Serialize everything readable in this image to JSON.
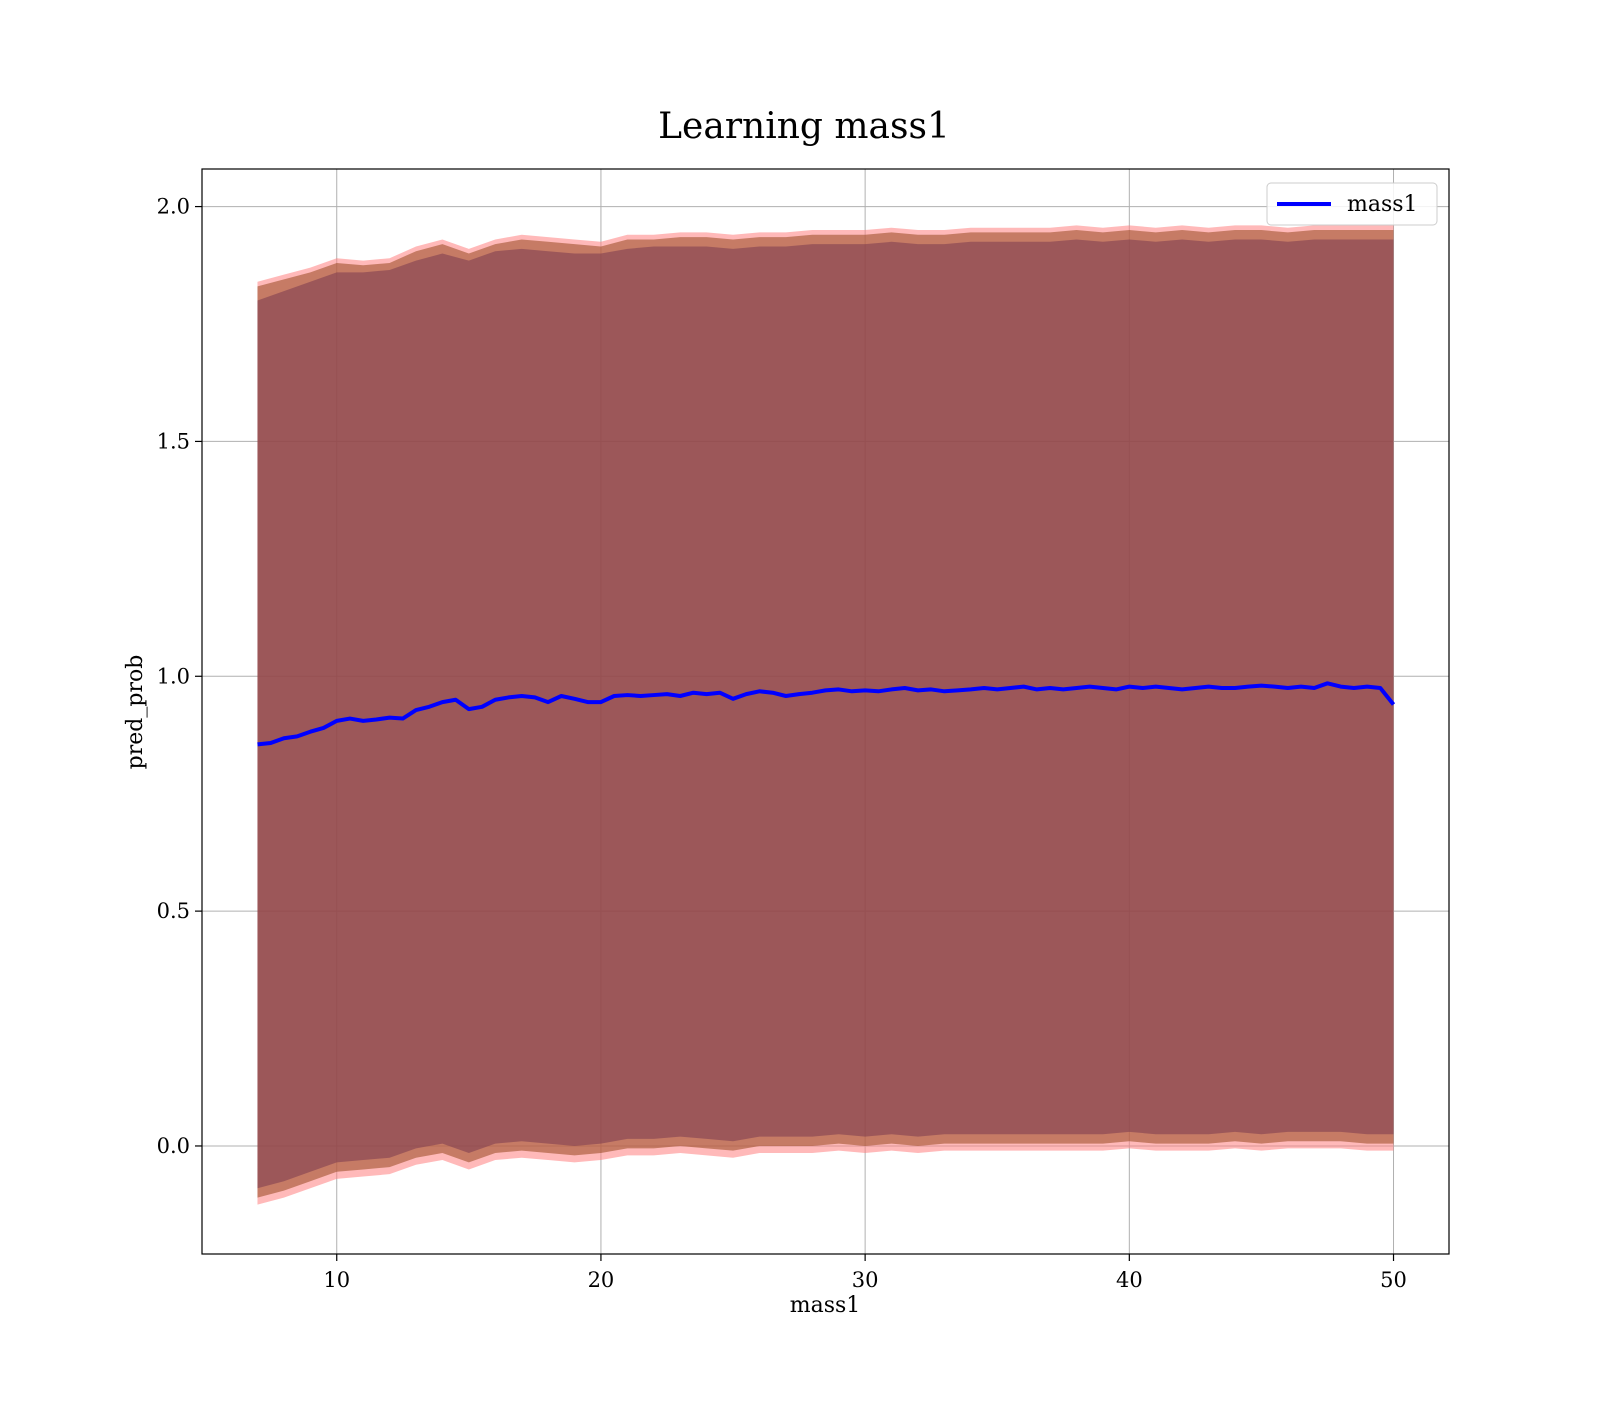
{
  "chart_data": {
    "type": "line",
    "title": "Learning mass1",
    "xlabel": "mass1",
    "ylabel": "pred_prob",
    "xlim": [
      4.9,
      52.1
    ],
    "ylim": [
      -0.23,
      2.08
    ],
    "xticks": [
      10,
      20,
      30,
      40,
      50
    ],
    "yticks": [
      0.0,
      0.5,
      1.0,
      1.5,
      2.0
    ],
    "xtick_labels": [
      "10",
      "20",
      "30",
      "40",
      "50"
    ],
    "ytick_labels": [
      "0.0",
      "0.5",
      "1.0",
      "1.5",
      "2.0"
    ],
    "grid": true,
    "legend_position": "top-right",
    "series": [
      {
        "name": "mass1",
        "color": "#0000ff",
        "x": [
          7,
          7.5,
          8,
          8.5,
          9,
          9.5,
          10,
          10.5,
          11,
          11.5,
          12,
          12.5,
          13,
          13.5,
          14,
          14.5,
          15,
          15.5,
          16,
          16.5,
          17,
          17.5,
          18,
          18.5,
          19,
          19.5,
          20,
          20.5,
          21,
          21.5,
          22,
          22.5,
          23,
          23.5,
          24,
          24.5,
          25,
          25.5,
          26,
          26.5,
          27,
          27.5,
          28,
          28.5,
          29,
          29.5,
          30,
          30.5,
          31,
          31.5,
          32,
          32.5,
          33,
          33.5,
          34,
          34.5,
          35,
          35.5,
          36,
          36.5,
          37,
          37.5,
          38,
          38.5,
          39,
          39.5,
          40,
          40.5,
          41,
          41.5,
          42,
          42.5,
          43,
          43.5,
          44,
          44.5,
          45,
          45.5,
          46,
          46.5,
          47,
          47.5,
          48,
          48.5,
          49,
          49.5,
          50
        ],
        "values": [
          0.855,
          0.858,
          0.868,
          0.872,
          0.882,
          0.89,
          0.905,
          0.91,
          0.905,
          0.908,
          0.912,
          0.91,
          0.928,
          0.935,
          0.945,
          0.95,
          0.93,
          0.935,
          0.95,
          0.955,
          0.958,
          0.955,
          0.945,
          0.958,
          0.952,
          0.945,
          0.945,
          0.958,
          0.96,
          0.958,
          0.96,
          0.962,
          0.958,
          0.965,
          0.962,
          0.965,
          0.952,
          0.962,
          0.968,
          0.965,
          0.958,
          0.962,
          0.965,
          0.97,
          0.972,
          0.968,
          0.97,
          0.968,
          0.972,
          0.975,
          0.97,
          0.972,
          0.968,
          0.97,
          0.972,
          0.975,
          0.972,
          0.975,
          0.978,
          0.972,
          0.975,
          0.972,
          0.975,
          0.978,
          0.975,
          0.972,
          0.978,
          0.975,
          0.978,
          0.975,
          0.972,
          0.975,
          0.978,
          0.975,
          0.975,
          0.978,
          0.98,
          0.978,
          0.975,
          0.978,
          0.975,
          0.985,
          0.978,
          0.975,
          0.978,
          0.975,
          0.94
        ]
      }
    ],
    "bands": [
      {
        "color": "#ff8080",
        "opacity": 0.55,
        "x": [
          7,
          8,
          9,
          10,
          11,
          12,
          13,
          14,
          15,
          16,
          17,
          18,
          19,
          20,
          21,
          22,
          23,
          24,
          25,
          26,
          27,
          28,
          29,
          30,
          31,
          32,
          33,
          34,
          35,
          36,
          37,
          38,
          39,
          40,
          41,
          42,
          43,
          44,
          45,
          46,
          47,
          48,
          49,
          50
        ],
        "upper": [
          1.84,
          1.855,
          1.87,
          1.89,
          1.885,
          1.89,
          1.915,
          1.93,
          1.91,
          1.93,
          1.94,
          1.935,
          1.93,
          1.925,
          1.94,
          1.94,
          1.945,
          1.945,
          1.94,
          1.945,
          1.945,
          1.95,
          1.95,
          1.95,
          1.955,
          1.95,
          1.95,
          1.955,
          1.955,
          1.955,
          1.955,
          1.96,
          1.955,
          1.96,
          1.955,
          1.96,
          1.955,
          1.96,
          1.96,
          1.955,
          1.96,
          1.96,
          1.96,
          1.96
        ],
        "lower": [
          -0.125,
          -0.11,
          -0.09,
          -0.07,
          -0.065,
          -0.06,
          -0.04,
          -0.03,
          -0.05,
          -0.03,
          -0.025,
          -0.03,
          -0.035,
          -0.03,
          -0.02,
          -0.02,
          -0.015,
          -0.02,
          -0.025,
          -0.015,
          -0.015,
          -0.015,
          -0.01,
          -0.015,
          -0.01,
          -0.015,
          -0.01,
          -0.01,
          -0.01,
          -0.01,
          -0.01,
          -0.01,
          -0.01,
          -0.005,
          -0.01,
          -0.01,
          -0.01,
          -0.005,
          -0.01,
          -0.005,
          -0.005,
          -0.005,
          -0.01,
          -0.01
        ]
      },
      {
        "color": "#a0522d",
        "opacity": 0.6,
        "x": [
          7,
          8,
          9,
          10,
          11,
          12,
          13,
          14,
          15,
          16,
          17,
          18,
          19,
          20,
          21,
          22,
          23,
          24,
          25,
          26,
          27,
          28,
          29,
          30,
          31,
          32,
          33,
          34,
          35,
          36,
          37,
          38,
          39,
          40,
          41,
          42,
          43,
          44,
          45,
          46,
          47,
          48,
          49,
          50
        ],
        "upper": [
          1.83,
          1.845,
          1.86,
          1.88,
          1.875,
          1.88,
          1.905,
          1.92,
          1.9,
          1.92,
          1.93,
          1.925,
          1.92,
          1.915,
          1.93,
          1.93,
          1.935,
          1.935,
          1.93,
          1.935,
          1.935,
          1.94,
          1.94,
          1.94,
          1.945,
          1.94,
          1.94,
          1.945,
          1.945,
          1.945,
          1.945,
          1.95,
          1.945,
          1.95,
          1.945,
          1.95,
          1.945,
          1.95,
          1.95,
          1.945,
          1.95,
          1.95,
          1.95,
          1.95
        ],
        "lower": [
          -0.11,
          -0.095,
          -0.075,
          -0.055,
          -0.05,
          -0.045,
          -0.025,
          -0.015,
          -0.035,
          -0.015,
          -0.01,
          -0.015,
          -0.02,
          -0.015,
          -0.005,
          -0.005,
          0.0,
          -0.005,
          -0.01,
          0.0,
          0.0,
          0.0,
          0.005,
          0.0,
          0.005,
          0.0,
          0.005,
          0.005,
          0.005,
          0.005,
          0.005,
          0.005,
          0.005,
          0.01,
          0.005,
          0.005,
          0.005,
          0.01,
          0.005,
          0.01,
          0.01,
          0.01,
          0.005,
          0.005
        ]
      },
      {
        "color": "#7a3a50",
        "opacity": 0.55,
        "x": [
          7,
          8,
          9,
          10,
          11,
          12,
          13,
          14,
          15,
          16,
          17,
          18,
          19,
          20,
          21,
          22,
          23,
          24,
          25,
          26,
          27,
          28,
          29,
          30,
          31,
          32,
          33,
          34,
          35,
          36,
          37,
          38,
          39,
          40,
          41,
          42,
          43,
          44,
          45,
          46,
          47,
          48,
          49,
          50
        ],
        "upper": [
          1.8,
          1.82,
          1.84,
          1.86,
          1.86,
          1.865,
          1.885,
          1.9,
          1.885,
          1.905,
          1.91,
          1.905,
          1.9,
          1.9,
          1.91,
          1.915,
          1.915,
          1.915,
          1.91,
          1.915,
          1.915,
          1.92,
          1.92,
          1.92,
          1.925,
          1.92,
          1.92,
          1.925,
          1.925,
          1.925,
          1.925,
          1.93,
          1.925,
          1.93,
          1.925,
          1.93,
          1.925,
          1.93,
          1.93,
          1.925,
          1.93,
          1.93,
          1.93,
          1.93
        ],
        "lower": [
          -0.09,
          -0.075,
          -0.055,
          -0.035,
          -0.03,
          -0.025,
          -0.005,
          0.005,
          -0.015,
          0.005,
          0.01,
          0.005,
          0.0,
          0.005,
          0.015,
          0.015,
          0.02,
          0.015,
          0.01,
          0.02,
          0.02,
          0.02,
          0.025,
          0.02,
          0.025,
          0.02,
          0.025,
          0.025,
          0.025,
          0.025,
          0.025,
          0.025,
          0.025,
          0.03,
          0.025,
          0.025,
          0.025,
          0.03,
          0.025,
          0.03,
          0.03,
          0.03,
          0.025,
          0.025
        ]
      }
    ]
  }
}
